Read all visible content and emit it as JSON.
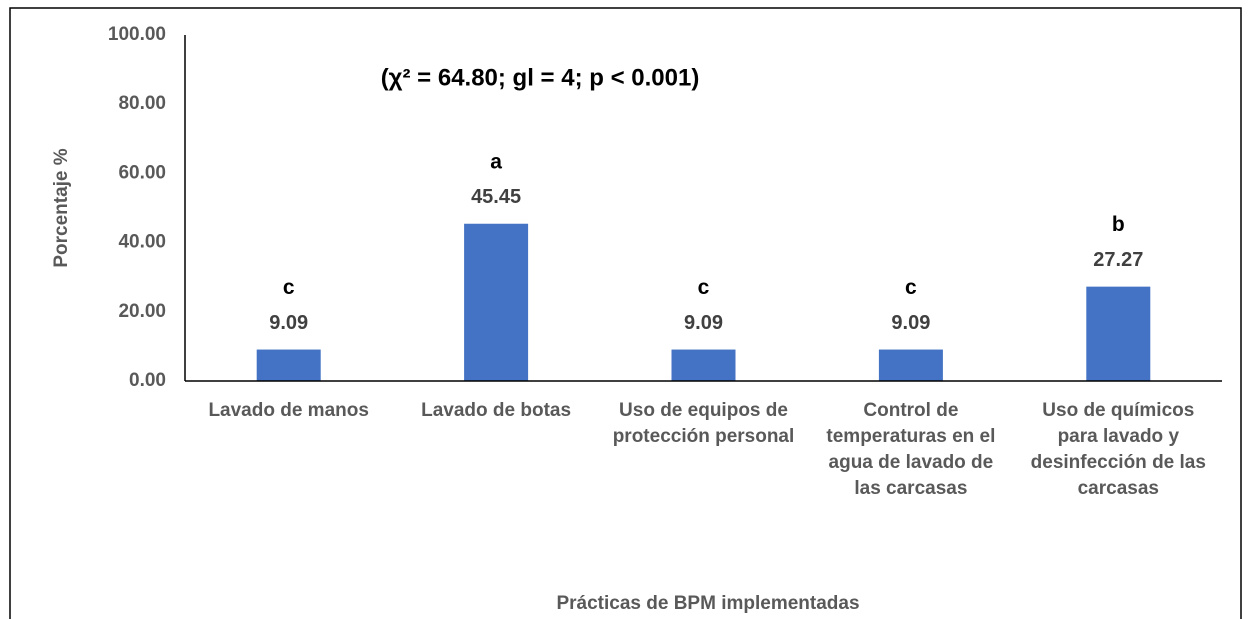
{
  "chart_data": {
    "type": "bar",
    "annotation": "(χ² = 64.80; gl = 4; p < 0.001)",
    "x_label": "Prácticas de BPM implementadas",
    "y_label": "Porcentaje %",
    "categories": [
      "Lavado de manos",
      "Lavado de botas",
      "Uso de equipos de protección personal",
      "Control de temperaturas en el agua de lavado de las carcasas",
      "Uso de químicos para lavado y desinfección de las carcasas"
    ],
    "values": [
      9.09,
      45.45,
      9.09,
      9.09,
      27.27
    ],
    "letters": [
      "c",
      "a",
      "c",
      "c",
      "b"
    ],
    "color": "#4472c4",
    "ylim": [
      0,
      100
    ],
    "yticks": [
      {
        "value": 0,
        "label": "0.00"
      },
      {
        "value": 20,
        "label": "20.00"
      },
      {
        "value": 40,
        "label": "40.00"
      },
      {
        "value": 60,
        "label": "60.00"
      },
      {
        "value": 80,
        "label": "80.00"
      },
      {
        "value": 100,
        "label": "100.00"
      }
    ]
  }
}
